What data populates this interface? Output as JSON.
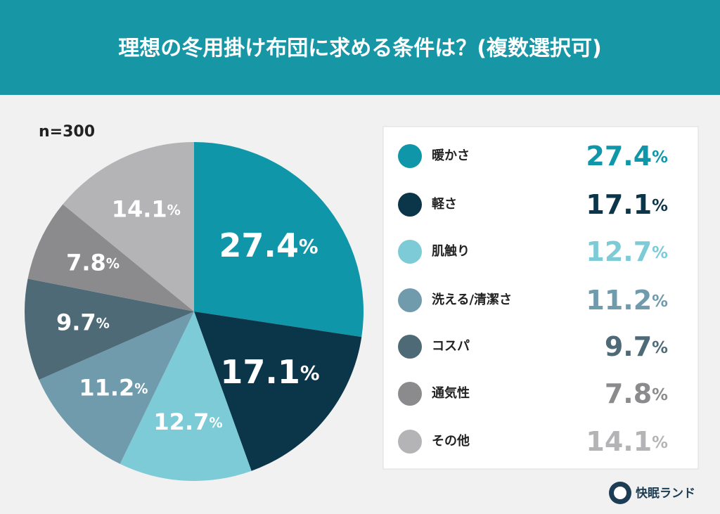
{
  "chart_data": {
    "type": "pie",
    "title": "理想の冬用掛け布団に求める条件は？(複数選択可)",
    "sample": "n=300",
    "categories": [
      "暖かさ",
      "軽さ",
      "肌触り",
      "洗える/清潔さ",
      "コスパ",
      "通気性",
      "その他"
    ],
    "values": [
      27.4,
      17.1,
      12.7,
      11.2,
      9.7,
      7.8,
      14.1
    ],
    "unit": "%",
    "colors": [
      "#0f97a9",
      "#0b3549",
      "#7ccbd7",
      "#6f9bad",
      "#4e6a77",
      "#8b8b8d",
      "#b4b4b6"
    ],
    "brand": "快眠ランド"
  }
}
